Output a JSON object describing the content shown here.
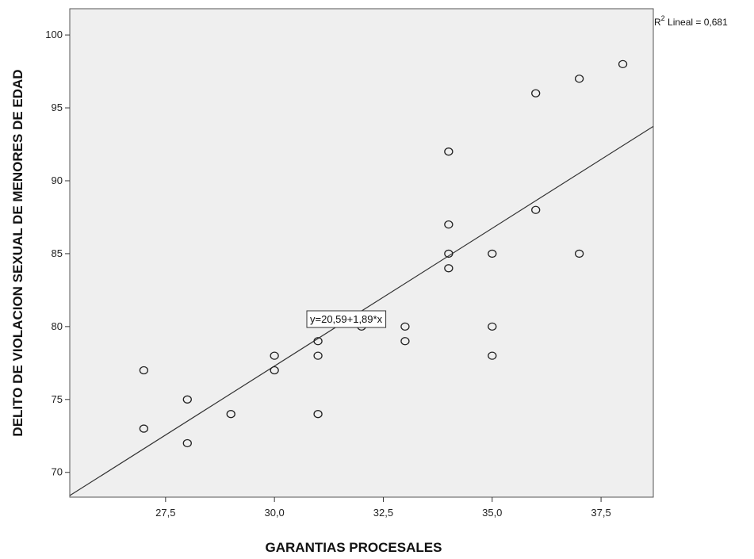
{
  "chart_data": {
    "type": "scatter",
    "title": "",
    "xlabel": "GARANTIAS PROCESALES",
    "ylabel": "DELITO DE VIOLACION SEXUAL DE MENORES DE EDAD",
    "xlim": [
      25.3,
      38.7
    ],
    "ylim": [
      68.3,
      101.8
    ],
    "x_ticks": [
      27.5,
      30.0,
      32.5,
      35.0,
      37.5
    ],
    "x_tick_labels": [
      "27,5",
      "30,0",
      "32,5",
      "35,0",
      "37,5"
    ],
    "y_ticks": [
      70,
      75,
      80,
      85,
      90,
      95,
      100
    ],
    "y_tick_labels": [
      "70",
      "75",
      "80",
      "85",
      "90",
      "95",
      "100"
    ],
    "grid": false,
    "background_color": "#efefef",
    "marker": "open-circle",
    "points": [
      {
        "x": 27,
        "y": 77
      },
      {
        "x": 27,
        "y": 73
      },
      {
        "x": 28,
        "y": 75
      },
      {
        "x": 28,
        "y": 72
      },
      {
        "x": 29,
        "y": 74
      },
      {
        "x": 30,
        "y": 78
      },
      {
        "x": 30,
        "y": 77
      },
      {
        "x": 31,
        "y": 79
      },
      {
        "x": 31,
        "y": 78
      },
      {
        "x": 31,
        "y": 74
      },
      {
        "x": 32,
        "y": 80
      },
      {
        "x": 33,
        "y": 80
      },
      {
        "x": 33,
        "y": 79
      },
      {
        "x": 34,
        "y": 92
      },
      {
        "x": 34,
        "y": 87
      },
      {
        "x": 34,
        "y": 85
      },
      {
        "x": 34,
        "y": 84
      },
      {
        "x": 35,
        "y": 85
      },
      {
        "x": 35,
        "y": 80
      },
      {
        "x": 35,
        "y": 78
      },
      {
        "x": 36,
        "y": 96
      },
      {
        "x": 36,
        "y": 88
      },
      {
        "x": 37,
        "y": 97
      },
      {
        "x": 37,
        "y": 85
      },
      {
        "x": 38,
        "y": 98
      }
    ],
    "fit_line": {
      "intercept": 20.59,
      "slope": 1.89,
      "equation_label": "y=20,59+1,89*x"
    },
    "r2_label": {
      "prefix": "R",
      "superscript": "2",
      "text": " Lineal = 0,681"
    }
  }
}
